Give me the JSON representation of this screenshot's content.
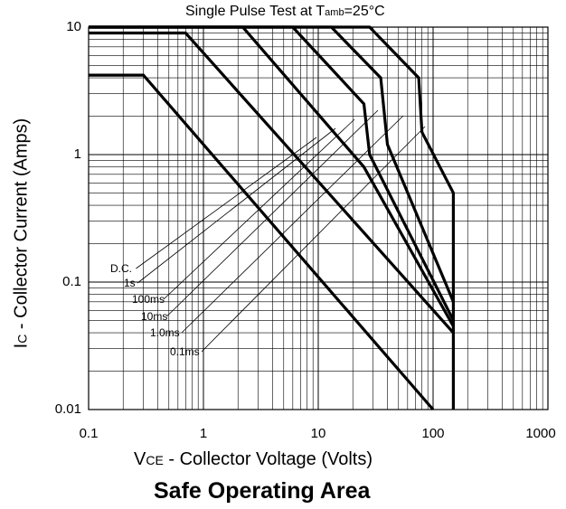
{
  "chart_data": {
    "type": "line",
    "title": {
      "main": "Single Pulse Test at T",
      "subscript": "amb",
      "suffix": "=25°C"
    },
    "caption": "Safe Operating Area",
    "xlabel": {
      "symbol": "V",
      "subscript": "CE",
      "text": " - Collector Voltage (Volts)"
    },
    "ylabel": {
      "symbol": "I",
      "subscript": "C",
      "text": " - Collector Current (Amps)"
    },
    "x_scale": "log",
    "y_scale": "log",
    "xlim": [
      0.1,
      1000
    ],
    "ylim": [
      0.01,
      10
    ],
    "x_ticks": [
      0.1,
      1,
      10,
      100,
      1000
    ],
    "x_tick_labels": [
      "0.1",
      "1",
      "10",
      "100",
      "1000"
    ],
    "y_ticks": [
      0.01,
      0.1,
      1,
      10
    ],
    "y_tick_labels": [
      "0.01",
      "0.1",
      "1",
      "10"
    ],
    "grid": true,
    "series": [
      {
        "name": "D.C.",
        "points": [
          [
            0.1,
            4.2
          ],
          [
            0.3,
            4.2
          ],
          [
            100,
            0.01
          ]
        ]
      },
      {
        "name": "1s",
        "points": [
          [
            0.1,
            9
          ],
          [
            0.7,
            9
          ],
          [
            150,
            0.04
          ]
        ]
      },
      {
        "name": "100ms",
        "points": [
          [
            0.1,
            10
          ],
          [
            2.2,
            10
          ],
          [
            25,
            0.8
          ],
          [
            150,
            0.045
          ]
        ]
      },
      {
        "name": "10ms",
        "points": [
          [
            0.1,
            10
          ],
          [
            6,
            10
          ],
          [
            25,
            2.5
          ],
          [
            28,
            1
          ],
          [
            150,
            0.05
          ]
        ]
      },
      {
        "name": "1.0ms",
        "points": [
          [
            0.1,
            10
          ],
          [
            13,
            10
          ],
          [
            35,
            4
          ],
          [
            40,
            1.2
          ],
          [
            150,
            0.07
          ]
        ]
      },
      {
        "name": "0.1ms",
        "points": [
          [
            0.1,
            10
          ],
          [
            28,
            10
          ],
          [
            75,
            4
          ],
          [
            80,
            1.5
          ],
          [
            150,
            0.5
          ],
          [
            150,
            0.01
          ]
        ]
      }
    ],
    "legend_labels": [
      "D.C.",
      "1s",
      "100ms",
      "10ms",
      "1.0ms",
      "0.1ms"
    ]
  }
}
